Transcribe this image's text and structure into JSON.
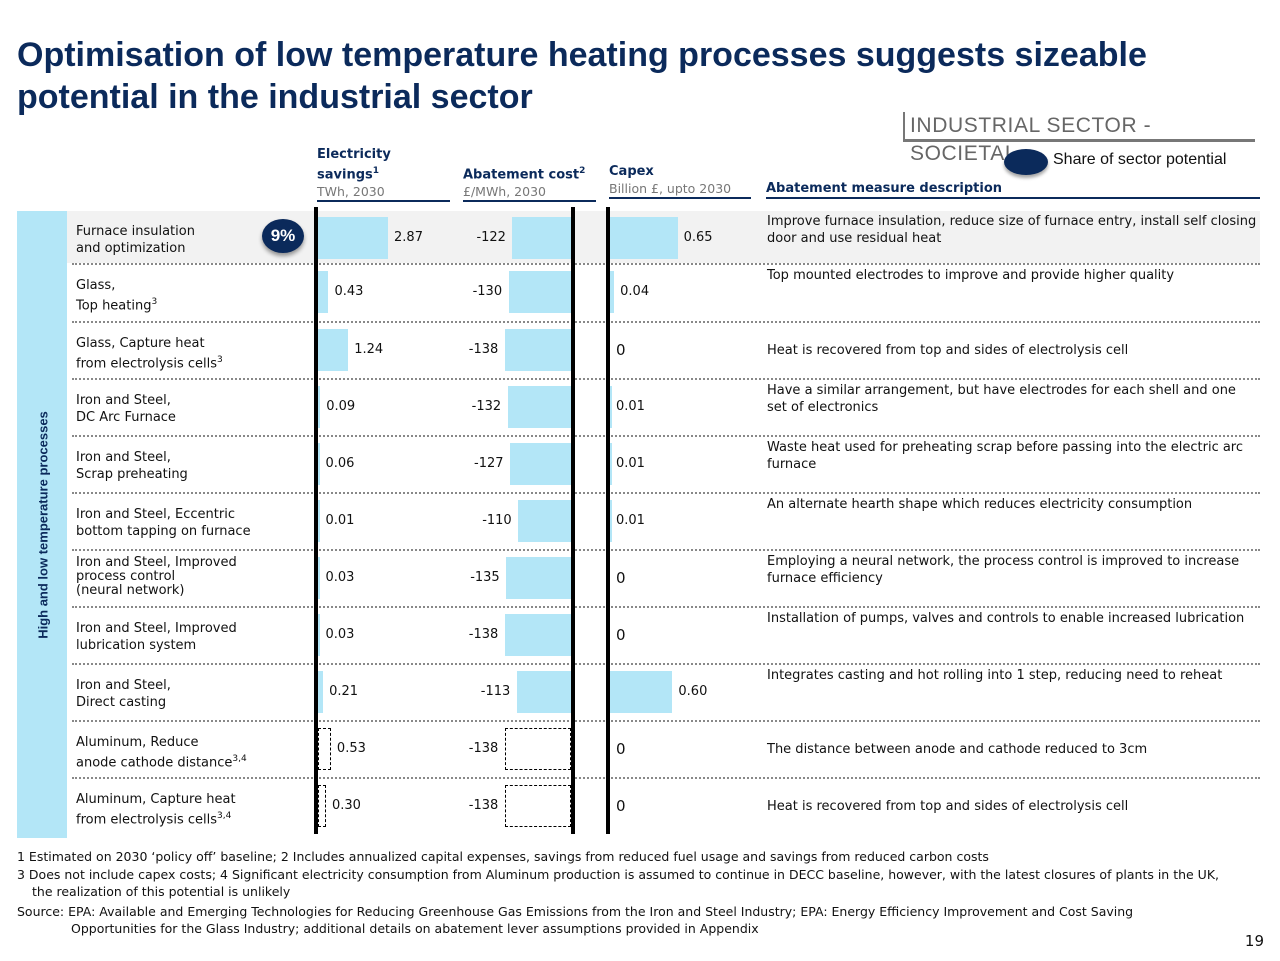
{
  "page": {
    "title": "Optimisation of low temperature heating processes suggests sizeable potential in the industrial sector",
    "sector_tag": "INDUSTRIAL SECTOR - SOCIETAL",
    "legend_label": "Share of sector potential",
    "side_label": "High and low temperature processes",
    "page_number": "19"
  },
  "columns": {
    "electricity": {
      "title_line1": "Electricity",
      "title_line2": "savings",
      "sup": "1",
      "unit": "TWh, 2030"
    },
    "abatement": {
      "title": "Abatement cost",
      "sup": "2",
      "unit": "£/MWh, 2030"
    },
    "capex": {
      "title": "Capex",
      "unit": "Billion £, upto 2030"
    },
    "description": {
      "title": "Abatement measure description"
    }
  },
  "chart_data": {
    "type": "bar",
    "series": [
      {
        "name": "Electricity savings",
        "values": [
          2.87,
          0.43,
          1.24,
          0.09,
          0.06,
          0.01,
          0.03,
          0.03,
          0.21,
          0.53,
          0.3
        ]
      },
      {
        "name": "Abatement cost",
        "values": [
          -122,
          -130,
          -138,
          -132,
          -127,
          -110,
          -135,
          -138,
          -113,
          -138,
          -138
        ]
      },
      {
        "name": "Capex",
        "values": [
          0.65,
          0.04,
          0,
          0.01,
          0.01,
          0.01,
          0,
          0,
          0.6,
          0,
          0
        ]
      }
    ],
    "share_of_sector_potential": {
      "row": 0,
      "label": "9%"
    },
    "dashed_rows": [
      9,
      10
    ]
  },
  "rows": [
    {
      "label_lines": [
        "Furnace insulation",
        "and optimization"
      ],
      "sup": "",
      "elec": "2.87",
      "cost": "-122",
      "capex": "0.65",
      "desc": "Improve furnace insulation, reduce size of furnace entry, install self closing door and use residual heat"
    },
    {
      "label_lines": [
        "Glass,",
        "Top heating"
      ],
      "sup": "3",
      "elec": "0.43",
      "cost": "-130",
      "capex": "0.04",
      "desc": "Top mounted electrodes to improve and provide higher quality"
    },
    {
      "label_lines": [
        "Glass, Capture heat",
        "from electrolysis cells"
      ],
      "sup": "3",
      "elec": "1.24",
      "cost": "-138",
      "capex": "0",
      "desc": "Heat is recovered from top and sides of electrolysis cell"
    },
    {
      "label_lines": [
        "Iron and Steel,",
        "DC Arc Furnace"
      ],
      "sup": "",
      "elec": "0.09",
      "cost": "-132",
      "capex": "0.01",
      "desc": "Have a similar arrangement, but have electrodes for each shell and one set of electronics"
    },
    {
      "label_lines": [
        "Iron and Steel,",
        "Scrap preheating"
      ],
      "sup": "",
      "elec": "0.06",
      "cost": "-127",
      "capex": "0.01",
      "desc": "Waste heat used for preheating scrap before passing into the electric arc furnace"
    },
    {
      "label_lines": [
        "Iron and Steel, Eccentric",
        "bottom tapping on furnace"
      ],
      "sup": "",
      "elec": "0.01",
      "cost": "-110",
      "capex": "0.01",
      "desc": "An alternate hearth shape which reduces electricity consumption"
    },
    {
      "label_lines": [
        "Iron and Steel, Improved",
        "process control",
        "(neural network)"
      ],
      "sup": "",
      "elec": "0.03",
      "cost": "-135",
      "capex": "0",
      "desc": "Employing a neural network, the process control is improved to increase furnace efficiency"
    },
    {
      "label_lines": [
        "Iron and Steel, Improved",
        "lubrication system"
      ],
      "sup": "",
      "elec": "0.03",
      "cost": "-138",
      "capex": "0",
      "desc": "Installation of pumps, valves and controls to enable increased lubrication"
    },
    {
      "label_lines": [
        "Iron and Steel,",
        "Direct casting"
      ],
      "sup": "",
      "elec": "0.21",
      "cost": "-113",
      "capex": "0.60",
      "desc": "Integrates casting and hot rolling into 1 step, reducing need to reheat"
    },
    {
      "label_lines": [
        "Aluminum, Reduce",
        "anode cathode distance"
      ],
      "sup": "3,4",
      "elec": "0.53",
      "cost": "-138",
      "capex": "0",
      "desc": "The distance between anode and cathode reduced to 3cm"
    },
    {
      "label_lines": [
        "Aluminum, Capture heat",
        "from electrolysis cells"
      ],
      "sup": "3,4",
      "elec": "0.30",
      "cost": "-138",
      "capex": "0",
      "desc": "Heat is recovered from top and sides of electrolysis cell"
    }
  ],
  "footnotes": {
    "line1": "1 Estimated on 2030 ‘policy off’ baseline; 2 Includes annualized capital expenses, savings from reduced fuel usage and savings from reduced carbon costs",
    "line2": "3 Does not include capex costs; 4 Significant electricity consumption from Aluminum production is assumed to continue in DECC baseline, however, with the latest closures of plants in the UK,",
    "line3": "the realization of this potential is unlikely",
    "source1": "Source: EPA: Available and Emerging Technologies for Reducing Greenhouse Gas Emissions from the Iron and Steel Industry; EPA: Energy Efficiency Improvement and Cost Saving",
    "source2": "Opportunities for the Glass Industry; additional details on abatement lever assumptions provided in Appendix"
  },
  "colors": {
    "navy": "#0b2a5b",
    "bar": "#b3e6f7",
    "highlight_row": "#f2f2f2"
  }
}
